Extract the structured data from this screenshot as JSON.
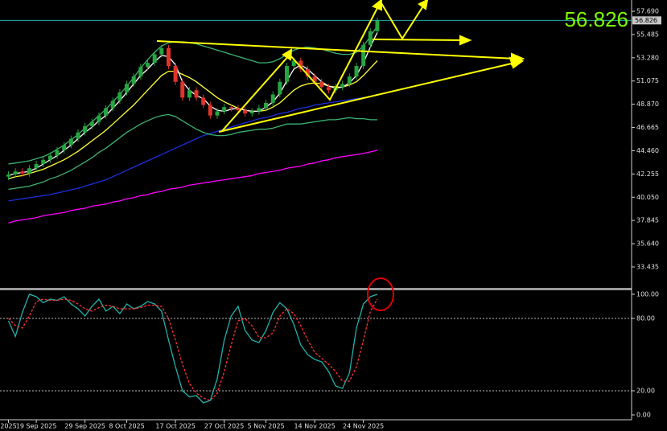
{
  "chart_data": [
    {
      "type": "candlestick",
      "categories": [
        "2025",
        null,
        null,
        null,
        "19 Sep 2025",
        null,
        null,
        null,
        null,
        null,
        null,
        "29 Sep 2025",
        null,
        null,
        null,
        null,
        null,
        "8 Oct 2025",
        null,
        null,
        null,
        null,
        null,
        null,
        "17 Oct 2025",
        null,
        null,
        null,
        null,
        null,
        null,
        "27 Oct 2025",
        null,
        null,
        null,
        null,
        null,
        "5 Nov 2025",
        null,
        null,
        null,
        null,
        null,
        null,
        "14 Nov 2025",
        null,
        null,
        null,
        null,
        null,
        null,
        "24 Nov 2025",
        null,
        null
      ],
      "open": [
        42.0,
        42.2,
        42.5,
        42.3,
        42.8,
        43.2,
        43.6,
        44.0,
        44.5,
        45.0,
        45.6,
        46.2,
        46.8,
        47.2,
        47.8,
        48.5,
        49.2,
        50.0,
        50.8,
        51.5,
        52.4,
        52.8,
        53.6,
        54.2,
        52.5,
        51.0,
        49.5,
        50.2,
        49.5,
        48.8,
        47.8,
        48.2,
        48.6,
        48.5,
        48.3,
        48.0,
        48.2,
        48.5,
        49.0,
        49.8,
        51.0,
        52.5,
        53.0,
        52.2,
        51.5,
        51.0,
        50.5,
        50.2,
        50.5,
        50.8,
        51.5,
        52.5,
        54.5,
        55.8
      ],
      "high": [
        42.5,
        42.8,
        42.8,
        43.1,
        43.5,
        43.9,
        44.3,
        44.8,
        45.3,
        45.9,
        46.5,
        47.1,
        47.5,
        48.1,
        48.8,
        49.5,
        50.3,
        51.1,
        51.8,
        52.7,
        53.1,
        53.9,
        54.5,
        54.5,
        52.8,
        51.3,
        50.5,
        50.5,
        49.8,
        49.1,
        48.5,
        48.9,
        48.9,
        48.8,
        48.6,
        48.5,
        48.8,
        49.3,
        50.1,
        51.3,
        52.8,
        53.3,
        53.3,
        52.5,
        51.8,
        51.3,
        50.8,
        50.8,
        51.1,
        51.8,
        52.8,
        54.8,
        56.1,
        57.1
      ],
      "low": [
        41.7,
        41.9,
        42.0,
        42.0,
        42.5,
        42.9,
        43.3,
        43.7,
        44.2,
        44.7,
        45.3,
        45.9,
        46.5,
        46.9,
        47.5,
        48.2,
        48.9,
        49.7,
        50.5,
        51.2,
        52.1,
        52.5,
        53.3,
        52.2,
        50.7,
        49.2,
        49.2,
        49.2,
        48.5,
        47.5,
        47.5,
        47.9,
        48.2,
        48.0,
        47.7,
        47.7,
        47.9,
        48.2,
        48.7,
        49.5,
        50.7,
        52.2,
        51.9,
        51.2,
        50.7,
        50.2,
        49.9,
        49.9,
        50.2,
        50.5,
        51.2,
        52.2,
        54.2,
        55.5
      ],
      "close": [
        42.2,
        42.5,
        42.3,
        42.8,
        43.2,
        43.6,
        44.0,
        44.5,
        45.0,
        45.6,
        46.2,
        46.8,
        47.2,
        47.8,
        48.5,
        49.2,
        50.0,
        50.8,
        51.5,
        52.4,
        52.8,
        53.6,
        54.2,
        52.5,
        51.0,
        49.5,
        50.2,
        49.5,
        48.8,
        47.8,
        48.2,
        48.6,
        48.5,
        48.3,
        48.0,
        48.2,
        48.5,
        49.0,
        49.8,
        51.0,
        52.5,
        53.0,
        52.2,
        51.5,
        51.0,
        50.5,
        50.2,
        50.5,
        50.8,
        51.5,
        52.5,
        54.5,
        55.8,
        56.826
      ],
      "up_color": "#26a641",
      "down_color": "#e0342b",
      "series": [
        {
          "color": "#ff00ff",
          "values": [
            37.6,
            37.8,
            37.9,
            38.0,
            38.1,
            38.3,
            38.4,
            38.5,
            38.6,
            38.8,
            38.9,
            39.0,
            39.2,
            39.3,
            39.4,
            39.6,
            39.7,
            39.9,
            40.0,
            40.2,
            40.3,
            40.5,
            40.6,
            40.8,
            40.9,
            41.0,
            41.2,
            41.3,
            41.4,
            41.5,
            41.6,
            41.7,
            41.8,
            41.9,
            42.0,
            42.1,
            42.3,
            42.4,
            42.5,
            42.6,
            42.8,
            42.9,
            43.0,
            43.2,
            43.3,
            43.5,
            43.6,
            43.8,
            43.9,
            44.0,
            44.1,
            44.2,
            44.35,
            44.5
          ]
        },
        {
          "color": "#1a2fd8",
          "values": [
            39.7,
            39.8,
            39.9,
            40.0,
            40.1,
            40.2,
            40.3,
            40.45,
            40.6,
            40.75,
            40.9,
            41.1,
            41.3,
            41.5,
            41.7,
            42.0,
            42.3,
            42.6,
            42.9,
            43.2,
            43.5,
            43.8,
            44.1,
            44.4,
            44.7,
            45.0,
            45.3,
            45.6,
            45.9,
            46.1,
            46.3,
            46.5,
            46.7,
            46.9,
            47.1,
            47.3,
            47.5,
            47.6,
            47.8,
            48.0,
            48.1,
            48.3,
            48.5,
            48.6,
            48.8,
            48.9,
            49.0,
            49.1,
            49.2,
            49.3,
            49.4,
            49.5,
            49.6,
            49.8
          ]
        },
        {
          "color": "#3cb371",
          "values": [
            43.2,
            43.3,
            43.4,
            43.5,
            43.7,
            43.9,
            44.2,
            44.6,
            45.0,
            45.5,
            46.0,
            46.6,
            47.2,
            47.8,
            48.4,
            49.1,
            49.8,
            50.6,
            51.4,
            52.3,
            53.1,
            53.8,
            54.4,
            54.7,
            54.8,
            54.8,
            54.7,
            54.6,
            54.4,
            54.2,
            54.0,
            53.8,
            53.6,
            53.4,
            53.2,
            53.0,
            52.8,
            52.8,
            52.9,
            53.2,
            53.6,
            54.0,
            54.2,
            54.3,
            54.2,
            54.1,
            53.9,
            53.7,
            53.6,
            53.6,
            53.8,
            54.4,
            55.3,
            56.3
          ]
        },
        {
          "color": "#3cb371",
          "values": [
            40.8,
            40.9,
            41.0,
            41.1,
            41.3,
            41.5,
            41.8,
            42.0,
            42.3,
            42.6,
            43.0,
            43.4,
            43.8,
            44.3,
            44.7,
            45.2,
            45.7,
            46.2,
            46.6,
            47.0,
            47.3,
            47.6,
            47.8,
            47.9,
            47.7,
            47.3,
            46.9,
            46.5,
            46.2,
            46.0,
            45.9,
            45.9,
            46.0,
            46.2,
            46.3,
            46.4,
            46.5,
            46.5,
            46.6,
            46.8,
            47.0,
            47.0,
            47.0,
            47.1,
            47.2,
            47.3,
            47.4,
            47.4,
            47.5,
            47.6,
            47.5,
            47.5,
            47.4,
            47.4
          ]
        },
        {
          "color": "#ffff33",
          "values": [
            41.8,
            42.0,
            42.1,
            42.3,
            42.5,
            42.7,
            43.0,
            43.3,
            43.6,
            44.0,
            44.4,
            44.9,
            45.4,
            45.9,
            46.4,
            47.0,
            47.6,
            48.2,
            48.8,
            49.5,
            50.2,
            50.9,
            51.6,
            52.0,
            52.0,
            51.7,
            51.4,
            51.0,
            50.5,
            50.0,
            49.5,
            49.1,
            48.8,
            48.5,
            48.3,
            48.2,
            48.2,
            48.3,
            48.6,
            49.0,
            49.6,
            50.2,
            50.6,
            50.8,
            50.9,
            50.8,
            50.6,
            50.5,
            50.5,
            50.7,
            51.0,
            51.6,
            52.3,
            53.0
          ]
        },
        {
          "color": "#ffffff",
          "values": [
            42.1,
            42.3,
            42.4,
            42.5,
            42.8,
            43.2,
            43.6,
            44.0,
            44.5,
            45.0,
            45.6,
            46.2,
            46.7,
            47.3,
            47.8,
            48.5,
            49.2,
            50.0,
            50.8,
            51.6,
            52.2,
            52.9,
            53.5,
            53.4,
            52.6,
            51.0,
            50.2,
            49.7,
            49.4,
            48.7,
            48.3,
            48.2,
            48.4,
            48.5,
            48.3,
            48.2,
            48.2,
            48.6,
            49.1,
            49.9,
            51.1,
            52.2,
            52.6,
            52.2,
            51.6,
            51.0,
            50.6,
            50.4,
            50.5,
            50.9,
            51.6,
            52.8,
            54.3,
            55.7
          ]
        }
      ],
      "last_price": 56.826,
      "last_price_color": "#20b2aa",
      "ylim": [
        31.45,
        58.76
      ],
      "yticks": [
        {
          "value": 57.69,
          "label": "57.690"
        },
        55.485,
        {
          "value": 53.28,
          "label": "53.280"
        },
        51.075,
        {
          "value": 48.87,
          "label": "48.870"
        },
        46.665,
        {
          "value": 44.46,
          "label": "44.460"
        },
        42.255,
        {
          "value": 40.05,
          "label": "40.050"
        },
        37.845,
        {
          "value": 35.64,
          "label": "35.640"
        },
        33.435
      ]
    },
    {
      "type": "line",
      "series": [
        {
          "color": "#20b2aa",
          "values": [
            78,
            65,
            85,
            100,
            98,
            93,
            96,
            95,
            98,
            92,
            88,
            82,
            90,
            96,
            86,
            90,
            84,
            92,
            88,
            90,
            94,
            92,
            86,
            62,
            40,
            20,
            15,
            16,
            10,
            12,
            30,
            62,
            82,
            90,
            70,
            62,
            60,
            70,
            85,
            93,
            88,
            75,
            58,
            50,
            46,
            44,
            36,
            24,
            22,
            35,
            72,
            92,
            98,
            100
          ]
        },
        {
          "color": "#ff3030",
          "dashed": true,
          "values": [
            80,
            74,
            72,
            82,
            94,
            96,
            95,
            95,
            96,
            95,
            92,
            88,
            86,
            89,
            91,
            90,
            88,
            88,
            88,
            89,
            91,
            91,
            90,
            80,
            62,
            42,
            26,
            18,
            14,
            12,
            18,
            36,
            58,
            78,
            80,
            74,
            64,
            64,
            68,
            82,
            88,
            84,
            74,
            62,
            52,
            47,
            42,
            36,
            28,
            28,
            40,
            62,
            86,
            96
          ]
        }
      ],
      "levels": [
        80,
        20
      ],
      "ylim": [
        -4,
        103.3
      ],
      "yticks": [
        {
          "value": 100,
          "label": "100.00"
        },
        {
          "value": 80,
          "label": "80.00"
        },
        {
          "value": 20,
          "label": "20.00"
        },
        {
          "value": 0,
          "label": "0.00"
        }
      ]
    }
  ]
}
